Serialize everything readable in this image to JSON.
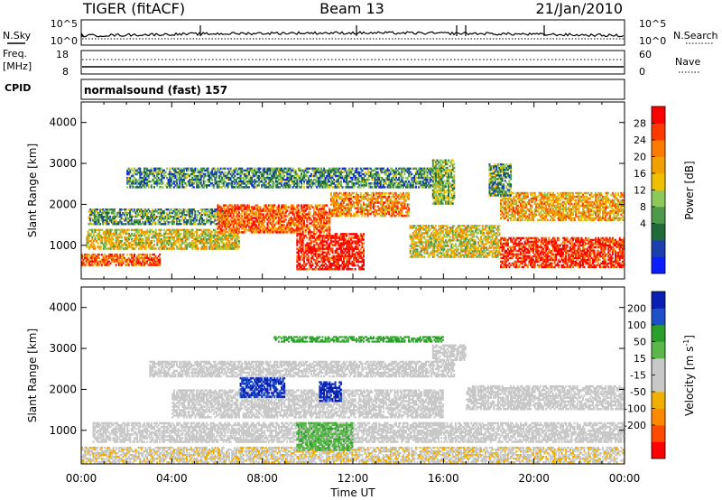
{
  "header": {
    "title": "TIGER (fitACF)",
    "beam": "Beam 13",
    "date": "21/Jan/2010"
  },
  "top_panels": {
    "nsky_label": "N.Sky",
    "nsearch_label": "N.Search",
    "nsky_ticks": [
      "10^5",
      "10^0"
    ],
    "nsearch_ticks": [
      "10^5",
      "10^0"
    ],
    "freq_label": "Freq.",
    "freq_unit": "[MHz]",
    "freq_ticks": [
      "18",
      "8"
    ],
    "nave_label": "Nave",
    "nave_ticks": [
      "60",
      "0"
    ],
    "cpid_label": "CPID",
    "cpid_value": "normalsound (fast) 157"
  },
  "chart_data": [
    {
      "type": "heatmap",
      "title": "",
      "xlabel": "Time UT",
      "ylabel": "Slant Range [km]",
      "x_ticks": [
        "00:00",
        "04:00",
        "08:00",
        "12:00",
        "16:00",
        "20:00",
        "00:00"
      ],
      "xlim_hours": [
        0,
        24
      ],
      "y_ticks": [
        1000,
        2000,
        3000,
        4000
      ],
      "ylim": [
        180,
        4500
      ],
      "colorbar": {
        "label": "Power [dB]",
        "ticks": [
          "28",
          "24",
          "20",
          "16",
          "12",
          "8",
          "4"
        ],
        "range": [
          0,
          32
        ],
        "colors": [
          "#0a1eff",
          "#1c3fb0",
          "#1e6b3a",
          "#4e9a4a",
          "#8cc85a",
          "#f0c000",
          "#f0a000",
          "#ff7a00",
          "#ff3a00",
          "#ff0000"
        ]
      },
      "echo_bands": [
        {
          "t0": 0.0,
          "t1": 3.5,
          "r0": 500,
          "r1": 800,
          "level": 0.8
        },
        {
          "t0": 0.2,
          "t1": 7.0,
          "r0": 900,
          "r1": 1400,
          "level": 0.55
        },
        {
          "t0": 0.3,
          "t1": 6.5,
          "r0": 1500,
          "r1": 1900,
          "level": 0.35
        },
        {
          "t0": 6.0,
          "t1": 11.0,
          "r0": 1300,
          "r1": 2000,
          "level": 0.8
        },
        {
          "t0": 9.5,
          "t1": 12.5,
          "r0": 400,
          "r1": 1300,
          "level": 0.95
        },
        {
          "t0": 11.0,
          "t1": 14.5,
          "r0": 1700,
          "r1": 2300,
          "level": 0.7
        },
        {
          "t0": 14.5,
          "t1": 18.5,
          "r0": 700,
          "r1": 1500,
          "level": 0.55
        },
        {
          "t0": 18.5,
          "t1": 24.0,
          "r0": 450,
          "r1": 1200,
          "level": 0.9
        },
        {
          "t0": 18.5,
          "t1": 24.0,
          "r0": 1600,
          "r1": 2300,
          "level": 0.65
        },
        {
          "t0": 2.0,
          "t1": 16.0,
          "r0": 2400,
          "r1": 2900,
          "level": 0.3
        },
        {
          "t0": 15.5,
          "t1": 16.5,
          "r0": 2000,
          "r1": 3100,
          "level": 0.45
        },
        {
          "t0": 18.0,
          "t1": 19.0,
          "r0": 2200,
          "r1": 3000,
          "level": 0.35
        }
      ]
    },
    {
      "type": "heatmap",
      "title": "",
      "xlabel": "Time UT",
      "ylabel": "Slant Range [km]",
      "x_ticks": [
        "00:00",
        "04:00",
        "08:00",
        "12:00",
        "16:00",
        "20:00",
        "00:00"
      ],
      "xlim_hours": [
        0,
        24
      ],
      "y_ticks": [
        1000,
        2000,
        3000,
        4000
      ],
      "ylim": [
        180,
        4500
      ],
      "colorbar": {
        "label": "Velocity [m s^-1]",
        "ticks": [
          "200",
          "100",
          "50",
          "15",
          "-15",
          "-50",
          "-100",
          "-200"
        ],
        "range": [
          -250,
          250
        ],
        "colors": [
          "#ff0000",
          "#ff4a00",
          "#ff8a00",
          "#f0b000",
          "#c8c8c8",
          "#c8c8c8",
          "#5ab84a",
          "#2aa02a",
          "#1e50c8",
          "#0a1eb4"
        ]
      },
      "echo_bands": [
        {
          "t0": 0.0,
          "t1": 24.0,
          "r0": 200,
          "r1": 600,
          "velocity": -40
        },
        {
          "t0": 0.5,
          "t1": 24.0,
          "r0": 700,
          "r1": 1200,
          "velocity": 0
        },
        {
          "t0": 4.0,
          "t1": 16.0,
          "r0": 1300,
          "r1": 2000,
          "velocity": 0
        },
        {
          "t0": 9.5,
          "t1": 12.0,
          "r0": 500,
          "r1": 1200,
          "velocity": 80
        },
        {
          "t0": 7.0,
          "t1": 9.0,
          "r0": 1800,
          "r1": 2300,
          "velocity": 200
        },
        {
          "t0": 10.5,
          "t1": 11.5,
          "r0": 1700,
          "r1": 2200,
          "velocity": 210
        },
        {
          "t0": 17.0,
          "t1": 24.0,
          "r0": 1500,
          "r1": 2100,
          "velocity": 0
        },
        {
          "t0": 3.0,
          "t1": 16.5,
          "r0": 2300,
          "r1": 2700,
          "velocity": 0
        },
        {
          "t0": 15.5,
          "t1": 17.0,
          "r0": 2700,
          "r1": 3100,
          "velocity": 0
        },
        {
          "t0": 8.5,
          "t1": 16.0,
          "r0": 3150,
          "r1": 3300,
          "velocity": 120
        }
      ]
    }
  ]
}
